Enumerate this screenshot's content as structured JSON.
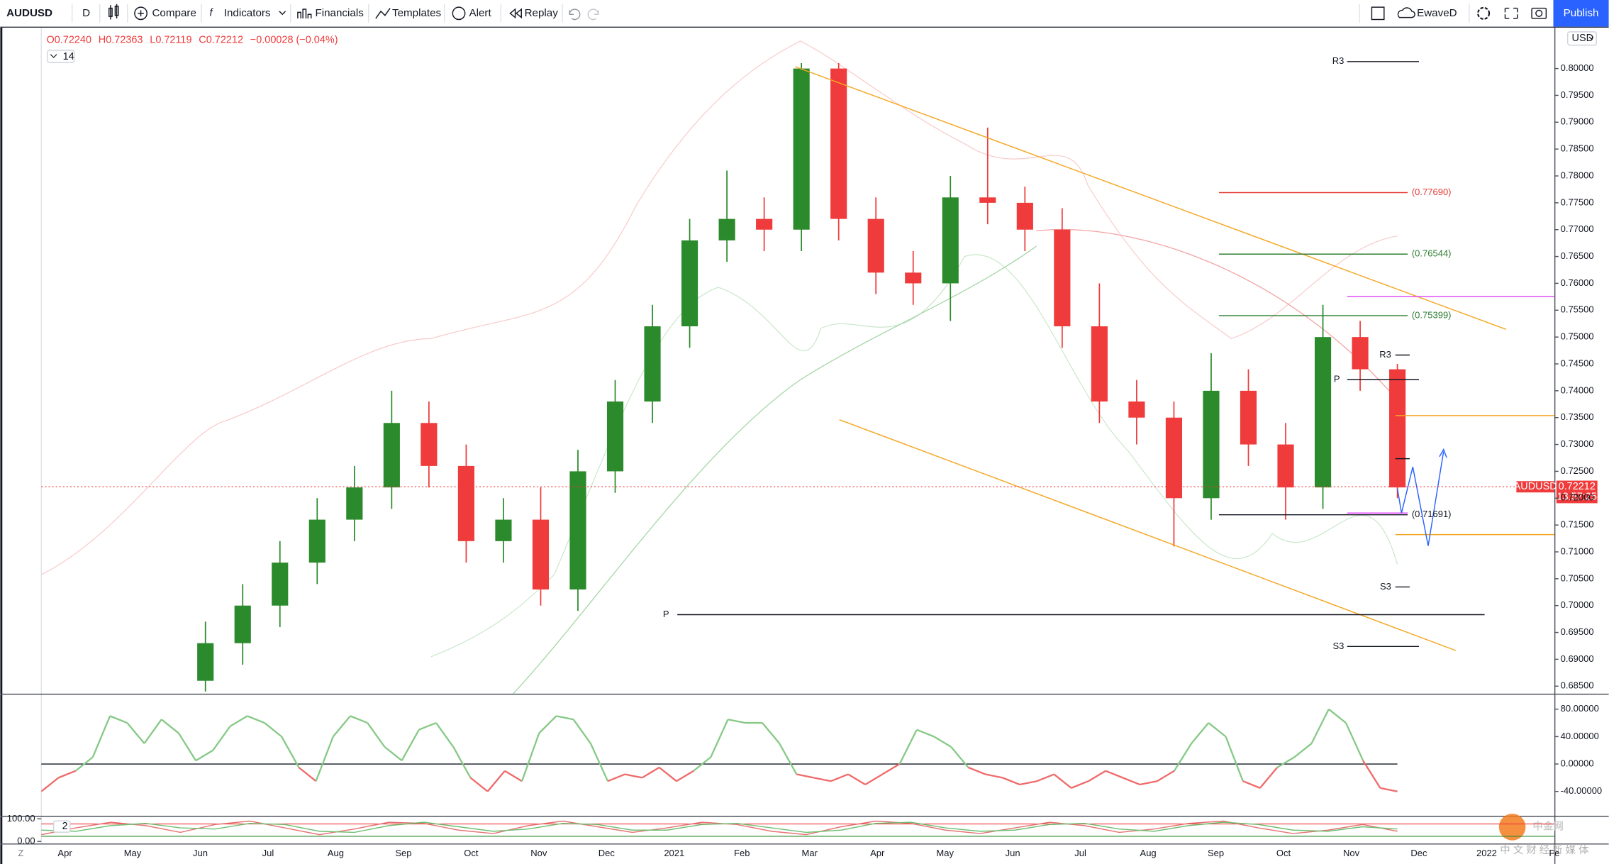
{
  "toolbar": {
    "symbol": "AUDUSD",
    "interval": "D",
    "items": [
      "Compare",
      "Indicators",
      "Financials",
      "Templates",
      "Alert",
      "Replay"
    ],
    "user": "EwaveD",
    "publish": "Publish"
  },
  "legend": {
    "ohlc": [
      "O0.72240",
      "H0.72363",
      "L0.72119",
      "C0.72212",
      "−0.00028 (−0.04%)"
    ],
    "length": "14"
  },
  "currency": "USD",
  "corner": "Z",
  "watermark": {
    "logo": "中金网",
    "sub": "中 文 财 经 新 媒 体"
  },
  "chart_data": [
    {
      "type": "candlestick",
      "open": [
        0.686,
        0.693,
        0.7,
        0.708,
        0.716,
        0.722,
        0.734,
        0.726,
        0.712,
        0.716,
        0.703,
        0.725,
        0.738,
        0.752,
        0.768,
        0.772,
        0.77,
        0.8,
        0.772,
        0.762,
        0.76,
        0.776,
        0.775,
        0.77,
        0.752,
        0.738,
        0.735,
        0.72,
        0.74,
        0.73,
        0.722,
        0.75,
        0.744
      ],
      "high": [
        0.697,
        0.704,
        0.712,
        0.72,
        0.726,
        0.74,
        0.738,
        0.73,
        0.72,
        0.722,
        0.729,
        0.742,
        0.756,
        0.772,
        0.781,
        0.776,
        0.801,
        0.801,
        0.776,
        0.766,
        0.78,
        0.789,
        0.778,
        0.774,
        0.76,
        0.742,
        0.738,
        0.747,
        0.744,
        0.734,
        0.756,
        0.753,
        0.745
      ],
      "low": [
        0.684,
        0.689,
        0.696,
        0.704,
        0.712,
        0.718,
        0.722,
        0.708,
        0.708,
        0.7,
        0.699,
        0.721,
        0.734,
        0.748,
        0.764,
        0.766,
        0.766,
        0.768,
        0.758,
        0.756,
        0.753,
        0.771,
        0.766,
        0.748,
        0.734,
        0.73,
        0.711,
        0.716,
        0.726,
        0.716,
        0.718,
        0.74,
        0.72
      ],
      "close": [
        0.693,
        0.7,
        0.708,
        0.716,
        0.722,
        0.734,
        0.726,
        0.712,
        0.716,
        0.703,
        0.725,
        0.738,
        0.752,
        0.768,
        0.772,
        0.77,
        0.8,
        0.772,
        0.762,
        0.76,
        0.776,
        0.775,
        0.77,
        0.752,
        0.738,
        0.735,
        0.72,
        0.74,
        0.73,
        0.722,
        0.75,
        0.744,
        0.722
      ],
      "up_color": "#2b8a2b",
      "down_color": "#ef3b3b",
      "ylim": [
        0.6836,
        0.8076
      ],
      "yticks": [
        {
          "value": 0.8,
          "label": "0.80000"
        },
        {
          "value": 0.795,
          "label": "0.79500"
        },
        {
          "value": 0.79,
          "label": "0.79000"
        },
        {
          "value": 0.785,
          "label": "0.78500"
        },
        {
          "value": 0.78,
          "label": "0.78000"
        },
        {
          "value": 0.775,
          "label": "0.77500"
        },
        {
          "value": 0.77,
          "label": "0.77000"
        },
        {
          "value": 0.765,
          "label": "0.76500"
        },
        {
          "value": 0.76,
          "label": "0.76000"
        },
        {
          "value": 0.755,
          "label": "0.75500"
        },
        {
          "value": 0.75,
          "label": "0.75000"
        },
        {
          "value": 0.745,
          "label": "0.74500"
        },
        {
          "value": 0.74,
          "label": "0.74000"
        },
        {
          "value": 0.735,
          "label": "0.73500"
        },
        {
          "value": 0.73,
          "label": "0.73000"
        },
        {
          "value": 0.725,
          "label": "0.72500"
        },
        {
          "value": 0.72,
          "label": "0.72000"
        },
        {
          "value": 0.715,
          "label": "0.71500"
        },
        {
          "value": 0.71,
          "label": "0.71000"
        },
        {
          "value": 0.705,
          "label": "0.70500"
        },
        {
          "value": 0.7,
          "label": "0.70000"
        },
        {
          "value": 0.695,
          "label": "0.69500"
        },
        {
          "value": 0.69,
          "label": "0.69000"
        },
        {
          "value": 0.685,
          "label": "0.68500"
        }
      ],
      "time_axis": [
        "Apr",
        "May",
        "Jun",
        "Jul",
        "Aug",
        "Sep",
        "Oct",
        "Nov",
        "Dec",
        "2021",
        "Feb",
        "Mar",
        "Apr",
        "May",
        "Jun",
        "Jul",
        "Aug",
        "Sep",
        "Oct",
        "Nov",
        "Dec",
        "2022",
        "Fe"
      ],
      "last": {
        "value": 0.72212,
        "label": "0.72212",
        "countdown": "13:57:25",
        "symbol": "AUDUSD",
        "color": "#ef3b3b"
      },
      "levels": [
        {
          "value": 0.7769,
          "label": "(0.77690)",
          "color": "#e53935"
        },
        {
          "value": 0.76544,
          "label": "(0.76544)",
          "color": "#2e7d32"
        },
        {
          "value": 0.75399,
          "label": "(0.75399)",
          "color": "#2e7d32"
        },
        {
          "value": 0.71691,
          "label": "(0.71691)",
          "color": "#131722"
        }
      ],
      "pivot_labels": [
        "R3",
        "P",
        "S3",
        "R3",
        "P",
        "S3"
      ]
    },
    {
      "type": "line",
      "values": [
        -40,
        -20,
        -10,
        10,
        70,
        60,
        30,
        65,
        45,
        5,
        20,
        55,
        70,
        60,
        40,
        -5,
        -25,
        40,
        70,
        60,
        25,
        5,
        50,
        60,
        25,
        -20,
        -40,
        -10,
        -25,
        45,
        70,
        65,
        30,
        -25,
        -15,
        -20,
        -5,
        -25,
        -10,
        10,
        65,
        60,
        60,
        30,
        -15,
        -20,
        -25,
        -15,
        -30,
        -15,
        0,
        50,
        40,
        25,
        -5,
        -15,
        -20,
        -30,
        -25,
        -15,
        -35,
        -25,
        -10,
        -20,
        -30,
        -25,
        -10,
        30,
        60,
        40,
        -25,
        -35,
        -5,
        10,
        30,
        80,
        60,
        5,
        -35,
        -40
      ],
      "up_color": "#86c986",
      "down_color": "#ef6a6a",
      "ylim": [
        -75.5,
        101.1
      ],
      "yticks": [
        {
          "value": 80,
          "label": "80.00000"
        },
        {
          "value": 40,
          "label": "40.00000"
        },
        {
          "value": 0,
          "label": "0.00000"
        },
        {
          "value": -40,
          "label": "-40.00000"
        }
      ]
    },
    {
      "type": "line",
      "label": "2",
      "series": [
        {
          "color": "#e57373",
          "values": [
            30,
            60,
            85,
            70,
            40,
            75,
            90,
            60,
            30,
            55,
            85,
            80,
            50,
            35,
            70,
            90,
            65,
            40,
            60,
            85,
            75,
            45,
            30,
            65,
            90,
            80,
            50,
            35,
            60,
            85,
            70,
            40,
            55,
            80,
            90,
            60,
            35,
            50,
            75,
            45
          ]
        },
        {
          "color": "#6fbf73",
          "values": [
            50,
            45,
            70,
            80,
            60,
            55,
            80,
            75,
            45,
            40,
            70,
            85,
            65,
            45,
            55,
            80,
            75,
            50,
            50,
            75,
            80,
            60,
            40,
            50,
            80,
            85,
            60,
            45,
            50,
            75,
            80,
            55,
            45,
            70,
            85,
            75,
            50,
            45,
            65,
            55
          ]
        }
      ],
      "ylim": [
        0,
        100
      ],
      "yticks": [
        {
          "value": 100,
          "label": "100.00"
        },
        {
          "value": 0,
          "label": "0.00"
        }
      ]
    }
  ]
}
